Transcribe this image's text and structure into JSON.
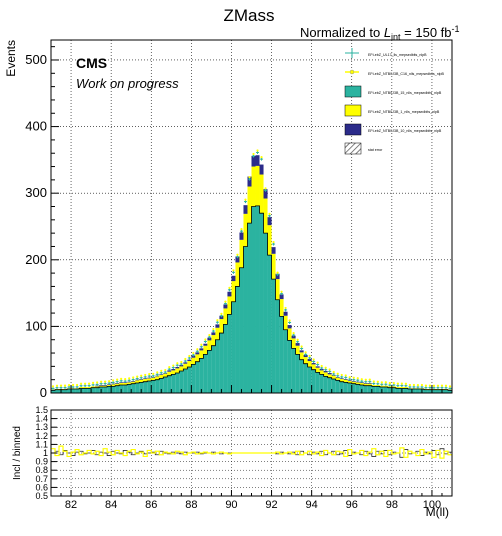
{
  "chart_data": [
    {
      "type": "histogram",
      "title": "ZMass",
      "normalization": "Normalized to L_int = 150 fb^-1",
      "normalization_parts": {
        "prefix": "Normalized to ",
        "symbol": "L",
        "subscript": "int",
        "suffix": " = 150 fb",
        "superscript": "-1"
      },
      "ylabel": "Events",
      "xlabel": "M(ll)",
      "xlim": [
        81,
        101
      ],
      "ylim": [
        0,
        530
      ],
      "xticks": [
        "82",
        "84",
        "86",
        "88",
        "90",
        "92",
        "94",
        "96",
        "98",
        "100"
      ],
      "yticks": [
        "0",
        "100",
        "200",
        "300",
        "400",
        "500"
      ],
      "grid": true,
      "cms_label": "CMS",
      "cms_sublabel": "Work on progress",
      "bin_edges_start": 81,
      "bin_width": 0.2,
      "colors": {
        "teal": "#2bb3a0",
        "yellow": "#ffff00",
        "navy": "#2b2b8a",
        "stat_hatch": "#555555",
        "data_marker": "#2bb3a0",
        "data_marker2": "#ffff00"
      },
      "legend": {
        "placement": "top-right",
        "entries": [
          {
            "label": "EFt-ebZ_UL17_lls_mepsedbits_nlpB",
            "style": "marker-teal"
          },
          {
            "label": "EFt-ebZ_NTB0J3B_C16_nlls_mepsedbits_nlpB",
            "style": "marker-yellow"
          },
          {
            "label": "EFt-ebZ_NTB0J3B_15_nlls_mepsedbits_nlpB",
            "style": "fill-teal"
          },
          {
            "label": "EFt-ebZ_NTB0J3B_1_nlls_mepsedbits_nlpB",
            "style": "fill-yellow"
          },
          {
            "label": "EFt-ebZ_NTB0J3B_10_nlls_mepsedbits_nlpB",
            "style": "fill-navy"
          },
          {
            "label": "stat error",
            "style": "hatch"
          }
        ]
      },
      "stack": {
        "teal": [
          4,
          5,
          5,
          5,
          6,
          6,
          6,
          7,
          7,
          7,
          8,
          8,
          9,
          9,
          10,
          10,
          11,
          12,
          12,
          13,
          14,
          15,
          16,
          17,
          18,
          19,
          20,
          22,
          24,
          26,
          28,
          30,
          33,
          36,
          39,
          43,
          47,
          52,
          58,
          64,
          71,
          80,
          90,
          103,
          118,
          137,
          160,
          188,
          220,
          255,
          280,
          281,
          270,
          240,
          207,
          171,
          140,
          115,
          95,
          79,
          67,
          58,
          50,
          44,
          39,
          35,
          31,
          28,
          25,
          23,
          21,
          19,
          17,
          16,
          15,
          14,
          13,
          12,
          11,
          11,
          10,
          10,
          9,
          9,
          8,
          8,
          7,
          7,
          7,
          6,
          6,
          6,
          6,
          5,
          5,
          5,
          5,
          5,
          5,
          4
        ],
        "yellow": [
          1,
          1,
          1,
          1,
          1,
          1,
          1,
          2,
          2,
          2,
          2,
          2,
          2,
          2,
          2,
          3,
          3,
          3,
          3,
          3,
          3,
          4,
          4,
          4,
          4,
          4,
          5,
          5,
          5,
          6,
          6,
          7,
          7,
          8,
          9,
          10,
          11,
          12,
          13,
          15,
          16,
          18,
          21,
          24,
          27,
          31,
          36,
          42,
          49,
          55,
          60,
          60,
          58,
          52,
          45,
          38,
          31,
          26,
          21,
          18,
          15,
          13,
          11,
          10,
          9,
          8,
          7,
          6,
          6,
          5,
          5,
          4,
          4,
          4,
          3,
          3,
          3,
          3,
          3,
          3,
          2,
          2,
          2,
          2,
          2,
          2,
          2,
          2,
          2,
          1,
          1,
          1,
          1,
          1,
          1,
          1,
          1,
          1,
          1,
          1
        ],
        "navy": [
          0,
          0,
          0,
          0,
          0,
          0,
          0,
          0,
          0,
          0,
          0,
          1,
          1,
          1,
          1,
          1,
          1,
          1,
          1,
          1,
          1,
          1,
          1,
          1,
          1,
          1,
          1,
          1,
          1,
          2,
          2,
          2,
          2,
          2,
          2,
          3,
          3,
          3,
          3,
          4,
          4,
          5,
          5,
          6,
          7,
          8,
          9,
          11,
          13,
          15,
          16,
          16,
          15,
          14,
          12,
          10,
          8,
          7,
          6,
          5,
          4,
          4,
          3,
          3,
          3,
          2,
          2,
          2,
          2,
          2,
          1,
          1,
          1,
          1,
          1,
          1,
          1,
          1,
          1,
          1,
          0,
          0,
          0,
          0,
          0,
          0,
          0,
          0,
          0,
          0,
          0,
          0,
          0,
          0,
          0,
          0,
          0,
          0,
          0,
          0
        ]
      },
      "ratio_panel": {
        "ylabel": "Incl / binned",
        "ylim": [
          0.5,
          1.5
        ],
        "yticks": [
          "0.5",
          "0.6",
          "0.7",
          "0.8",
          "0.9",
          "1",
          "1.1",
          "1.2",
          "1.3",
          "1.4",
          "1.5"
        ],
        "ratio_a": [
          1.05,
          0.97,
          1.08,
          1.02,
          0.96,
          1.01,
          1.04,
          0.98,
          1.0,
          1.03,
          0.99,
          1.02,
          0.97,
          1.05,
          1.01,
          0.98,
          1.03,
          1.0,
          0.97,
          1.02,
          1.04,
          0.99,
          1.01,
          0.96,
          1.03,
          1.0,
          1.02,
          0.98,
          1.01,
          1.0,
          0.99,
          1.02,
          1.01,
          0.98,
          1.0,
          1.01,
          0.99,
          1.0,
          1.01,
          1.0,
          0.99,
          1.0,
          1.01,
          1.0,
          0.99,
          1.0,
          1.0,
          1.0,
          1.0,
          1.0,
          1.0,
          1.0,
          1.0,
          1.0,
          1.0,
          1.0,
          1.01,
          0.99,
          1.0,
          1.01,
          0.99,
          1.02,
          0.98,
          1.0,
          1.02,
          0.99,
          1.01,
          0.97,
          1.03,
          1.0,
          0.98,
          1.02,
          1.01,
          0.96,
          1.04,
          0.99,
          1.0,
          1.03,
          0.97,
          1.01,
          1.05,
          0.98,
          1.02,
          0.96,
          1.03,
          0.99,
          1.0,
          1.06,
          0.95,
          1.02,
          1.0,
          0.97,
          1.04,
          0.99,
          1.01,
          0.95,
          1.03,
          0.94,
          1.02,
          0.98
        ],
        "ratio_b": [
          1.0,
          1.02,
          0.98,
          1.03,
          1.0,
          0.97,
          1.01,
          1.02,
          0.99,
          1.0,
          1.03,
          0.98,
          1.01,
          1.0,
          0.97,
          1.02,
          1.0,
          0.99,
          1.03,
          1.01,
          0.98,
          1.0,
          1.02,
          0.99,
          1.0,
          1.01,
          0.98,
          1.02,
          1.0,
          0.99,
          1.01,
          1.0,
          0.99,
          1.01,
          1.0,
          1.0,
          1.01,
          0.99,
          1.0,
          1.0,
          1.01,
          1.0,
          0.99,
          1.0,
          1.0,
          1.0,
          1.0,
          1.0,
          1.0,
          1.0,
          1.0,
          1.0,
          1.0,
          1.0,
          1.0,
          1.0,
          0.99,
          1.01,
          1.0,
          0.99,
          1.01,
          0.98,
          1.02,
          1.0,
          0.98,
          1.01,
          0.99,
          1.02,
          0.98,
          1.0,
          1.02,
          0.98,
          0.99,
          1.03,
          0.97,
          1.01,
          1.0,
          0.98,
          1.02,
          0.99,
          0.96,
          1.02,
          0.99,
          1.03,
          0.98,
          1.01,
          1.0,
          0.95,
          1.04,
          0.99,
          1.0,
          1.02,
          0.97,
          1.01,
          0.99,
          1.03,
          0.98,
          1.05,
          0.99,
          1.01
        ]
      }
    }
  ]
}
